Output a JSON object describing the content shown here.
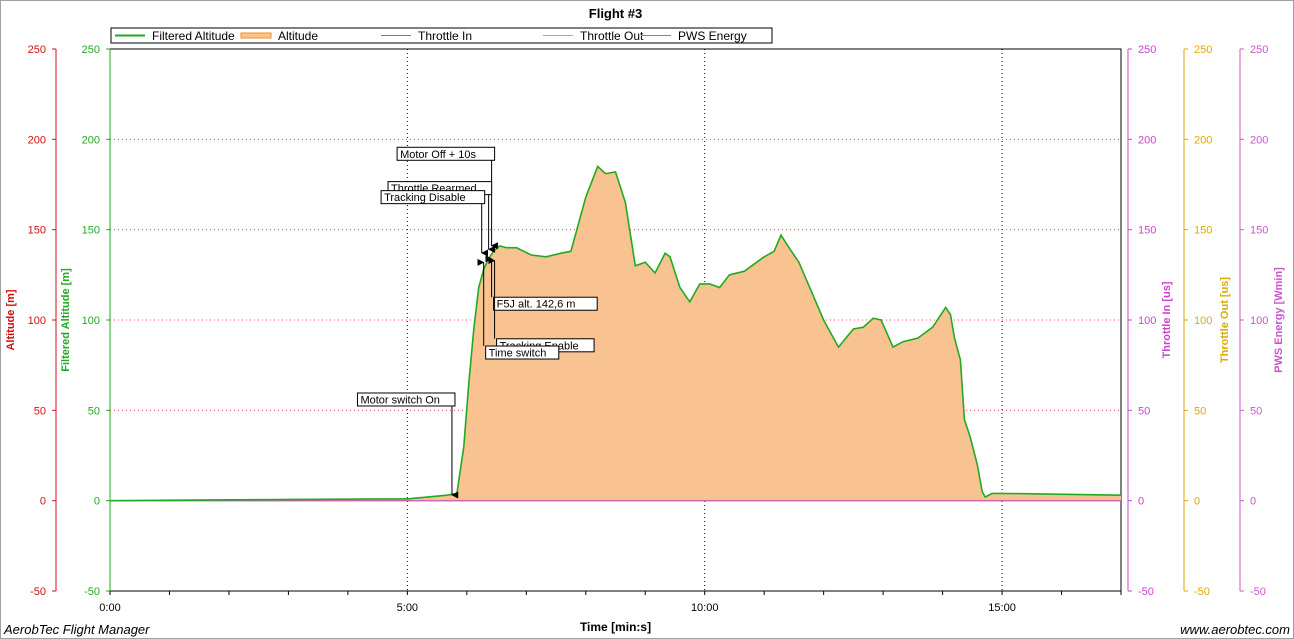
{
  "footer": {
    "left": "AerobTec Flight Manager",
    "right": "www.aerobtec.com"
  },
  "chart_data": {
    "type": "area",
    "title": "Flight #3",
    "xlabel": "Time [min:s]",
    "x_range_seconds": [
      0,
      1020
    ],
    "x_ticks": [
      {
        "t": 0,
        "label": "0:00"
      },
      {
        "t": 300,
        "label": "5:00"
      },
      {
        "t": 600,
        "label": "10:00"
      },
      {
        "t": 900,
        "label": "15:00"
      }
    ],
    "grid": true,
    "legend_position": "top",
    "axes": [
      {
        "id": "altitude",
        "label": "Altitude [m]",
        "side": "left",
        "color": "#d01010",
        "range": [
          -50,
          250
        ],
        "ticks": [
          -50,
          0,
          50,
          100,
          150,
          200,
          250
        ]
      },
      {
        "id": "filtered",
        "label": "Filtered Altitude [m]",
        "side": "left",
        "color": "#22aa22",
        "range": [
          -50,
          250
        ],
        "ticks": [
          -50,
          0,
          50,
          100,
          150,
          200,
          250
        ]
      },
      {
        "id": "throttle_in",
        "label": "Throttle In [us]",
        "side": "right",
        "color": "#cc44cc",
        "range": [
          -50,
          250
        ],
        "ticks": [
          -50,
          0,
          50,
          100,
          150,
          200,
          250
        ]
      },
      {
        "id": "throttle_out",
        "label": "Throttle Out [us]",
        "side": "right",
        "color": "#ddaa00",
        "range": [
          -50,
          250
        ],
        "ticks": [
          -50,
          0,
          50,
          100,
          150,
          200,
          250
        ]
      },
      {
        "id": "pws",
        "label": "PWS Energy [Wmin]",
        "side": "right",
        "color": "#cc55cc",
        "range": [
          -50,
          250
        ],
        "ticks": [
          -50,
          0,
          50,
          100,
          150,
          200,
          250
        ]
      }
    ],
    "series": [
      {
        "name": "Filtered Altitude",
        "color": "#22aa22",
        "style": "line",
        "points": [
          [
            0,
            0
          ],
          [
            120,
            0.5
          ],
          [
            280,
            1
          ],
          [
            300,
            1
          ],
          [
            320,
            2
          ],
          [
            340,
            3
          ],
          [
            350,
            4
          ],
          [
            357,
            30
          ],
          [
            362,
            65
          ],
          [
            367,
            95
          ],
          [
            372,
            118
          ],
          [
            377,
            128
          ],
          [
            382,
            134
          ],
          [
            387,
            138
          ],
          [
            393,
            141
          ],
          [
            400,
            140
          ],
          [
            410,
            140
          ],
          [
            425,
            136
          ],
          [
            440,
            135
          ],
          [
            455,
            137
          ],
          [
            465,
            138
          ],
          [
            480,
            168
          ],
          [
            492,
            185
          ],
          [
            500,
            181
          ],
          [
            510,
            182
          ],
          [
            520,
            165
          ],
          [
            530,
            130
          ],
          [
            540,
            132
          ],
          [
            550,
            126
          ],
          [
            560,
            137
          ],
          [
            565,
            135
          ],
          [
            575,
            118
          ],
          [
            585,
            110
          ],
          [
            595,
            120
          ],
          [
            605,
            120
          ],
          [
            615,
            118
          ],
          [
            625,
            125
          ],
          [
            640,
            127
          ],
          [
            660,
            135
          ],
          [
            670,
            138
          ],
          [
            677,
            147
          ],
          [
            685,
            140
          ],
          [
            695,
            132
          ],
          [
            720,
            100
          ],
          [
            735,
            85
          ],
          [
            750,
            95
          ],
          [
            760,
            96
          ],
          [
            770,
            101
          ],
          [
            778,
            100
          ],
          [
            790,
            85
          ],
          [
            800,
            88
          ],
          [
            815,
            90
          ],
          [
            830,
            96
          ],
          [
            843,
            107
          ],
          [
            848,
            103
          ],
          [
            852,
            90
          ],
          [
            858,
            78
          ],
          [
            862,
            45
          ],
          [
            868,
            35
          ],
          [
            875,
            20
          ],
          [
            880,
            5
          ],
          [
            883,
            2
          ],
          [
            890,
            4
          ],
          [
            900,
            4
          ],
          [
            1020,
            3
          ]
        ]
      },
      {
        "name": "Altitude",
        "color": "#ff8c1a",
        "style": "area",
        "fill": "#f8c291",
        "points": [
          [
            0,
            0
          ],
          [
            120,
            0.5
          ],
          [
            280,
            1
          ],
          [
            300,
            1
          ],
          [
            320,
            2
          ],
          [
            340,
            3
          ],
          [
            350,
            4
          ],
          [
            357,
            30
          ],
          [
            362,
            65
          ],
          [
            367,
            95
          ],
          [
            372,
            118
          ],
          [
            377,
            128
          ],
          [
            382,
            134
          ],
          [
            387,
            138
          ],
          [
            393,
            141
          ],
          [
            400,
            140
          ],
          [
            410,
            140
          ],
          [
            425,
            136
          ],
          [
            440,
            135
          ],
          [
            455,
            137
          ],
          [
            465,
            138
          ],
          [
            480,
            168
          ],
          [
            492,
            185
          ],
          [
            500,
            181
          ],
          [
            510,
            182
          ],
          [
            520,
            165
          ],
          [
            530,
            130
          ],
          [
            540,
            132
          ],
          [
            550,
            126
          ],
          [
            560,
            137
          ],
          [
            565,
            135
          ],
          [
            575,
            118
          ],
          [
            585,
            110
          ],
          [
            595,
            120
          ],
          [
            605,
            120
          ],
          [
            615,
            118
          ],
          [
            625,
            125
          ],
          [
            640,
            127
          ],
          [
            660,
            135
          ],
          [
            670,
            138
          ],
          [
            677,
            147
          ],
          [
            685,
            140
          ],
          [
            695,
            132
          ],
          [
            720,
            100
          ],
          [
            735,
            85
          ],
          [
            750,
            95
          ],
          [
            760,
            96
          ],
          [
            770,
            101
          ],
          [
            778,
            100
          ],
          [
            790,
            85
          ],
          [
            800,
            88
          ],
          [
            815,
            90
          ],
          [
            830,
            96
          ],
          [
            843,
            107
          ],
          [
            848,
            103
          ],
          [
            852,
            90
          ],
          [
            858,
            78
          ],
          [
            862,
            45
          ],
          [
            868,
            35
          ],
          [
            875,
            20
          ],
          [
            880,
            5
          ],
          [
            883,
            2
          ],
          [
            890,
            4
          ],
          [
            900,
            4
          ],
          [
            1020,
            3
          ]
        ]
      },
      {
        "name": "Throttle In",
        "color": "#cc44cc",
        "style": "line",
        "points": [
          [
            0,
            0
          ],
          [
            1020,
            0
          ]
        ]
      },
      {
        "name": "Throttle Out",
        "color": "#ddaa00",
        "style": "line",
        "points": [
          [
            0,
            0
          ],
          [
            1020,
            0
          ]
        ]
      },
      {
        "name": "PWS Energy",
        "color": "#cc55cc",
        "style": "line",
        "points": [
          [
            0,
            0
          ],
          [
            1020,
            0
          ]
        ]
      }
    ],
    "annotations": [
      {
        "label": "Motor switch On",
        "t": 345,
        "y": 2,
        "dir": "down",
        "label_y": 56,
        "label_side": "left"
      },
      {
        "label": "Motor Off + 10s",
        "t": 385,
        "y": 140,
        "dir": "down",
        "label_y": 192,
        "label_side": "left"
      },
      {
        "label": "Throttle Rearmed",
        "t": 382,
        "y": 138,
        "dir": "down",
        "label_y": 173,
        "label_side": "left"
      },
      {
        "label": "Tracking Disable",
        "t": 375,
        "y": 136,
        "dir": "down",
        "label_y": 168,
        "label_side": "left"
      },
      {
        "label": "F5J alt. 142,6 m",
        "t": 385,
        "y": 135,
        "dir": "up",
        "label_y": 109,
        "label_side": "right"
      },
      {
        "label": "Tracking Enable",
        "t": 388,
        "y": 134,
        "dir": "up",
        "label_y": 86,
        "label_side": "right"
      },
      {
        "label": "Time switch",
        "t": 377,
        "y": 133,
        "dir": "up",
        "label_y": 82,
        "label_side": "right"
      }
    ]
  }
}
